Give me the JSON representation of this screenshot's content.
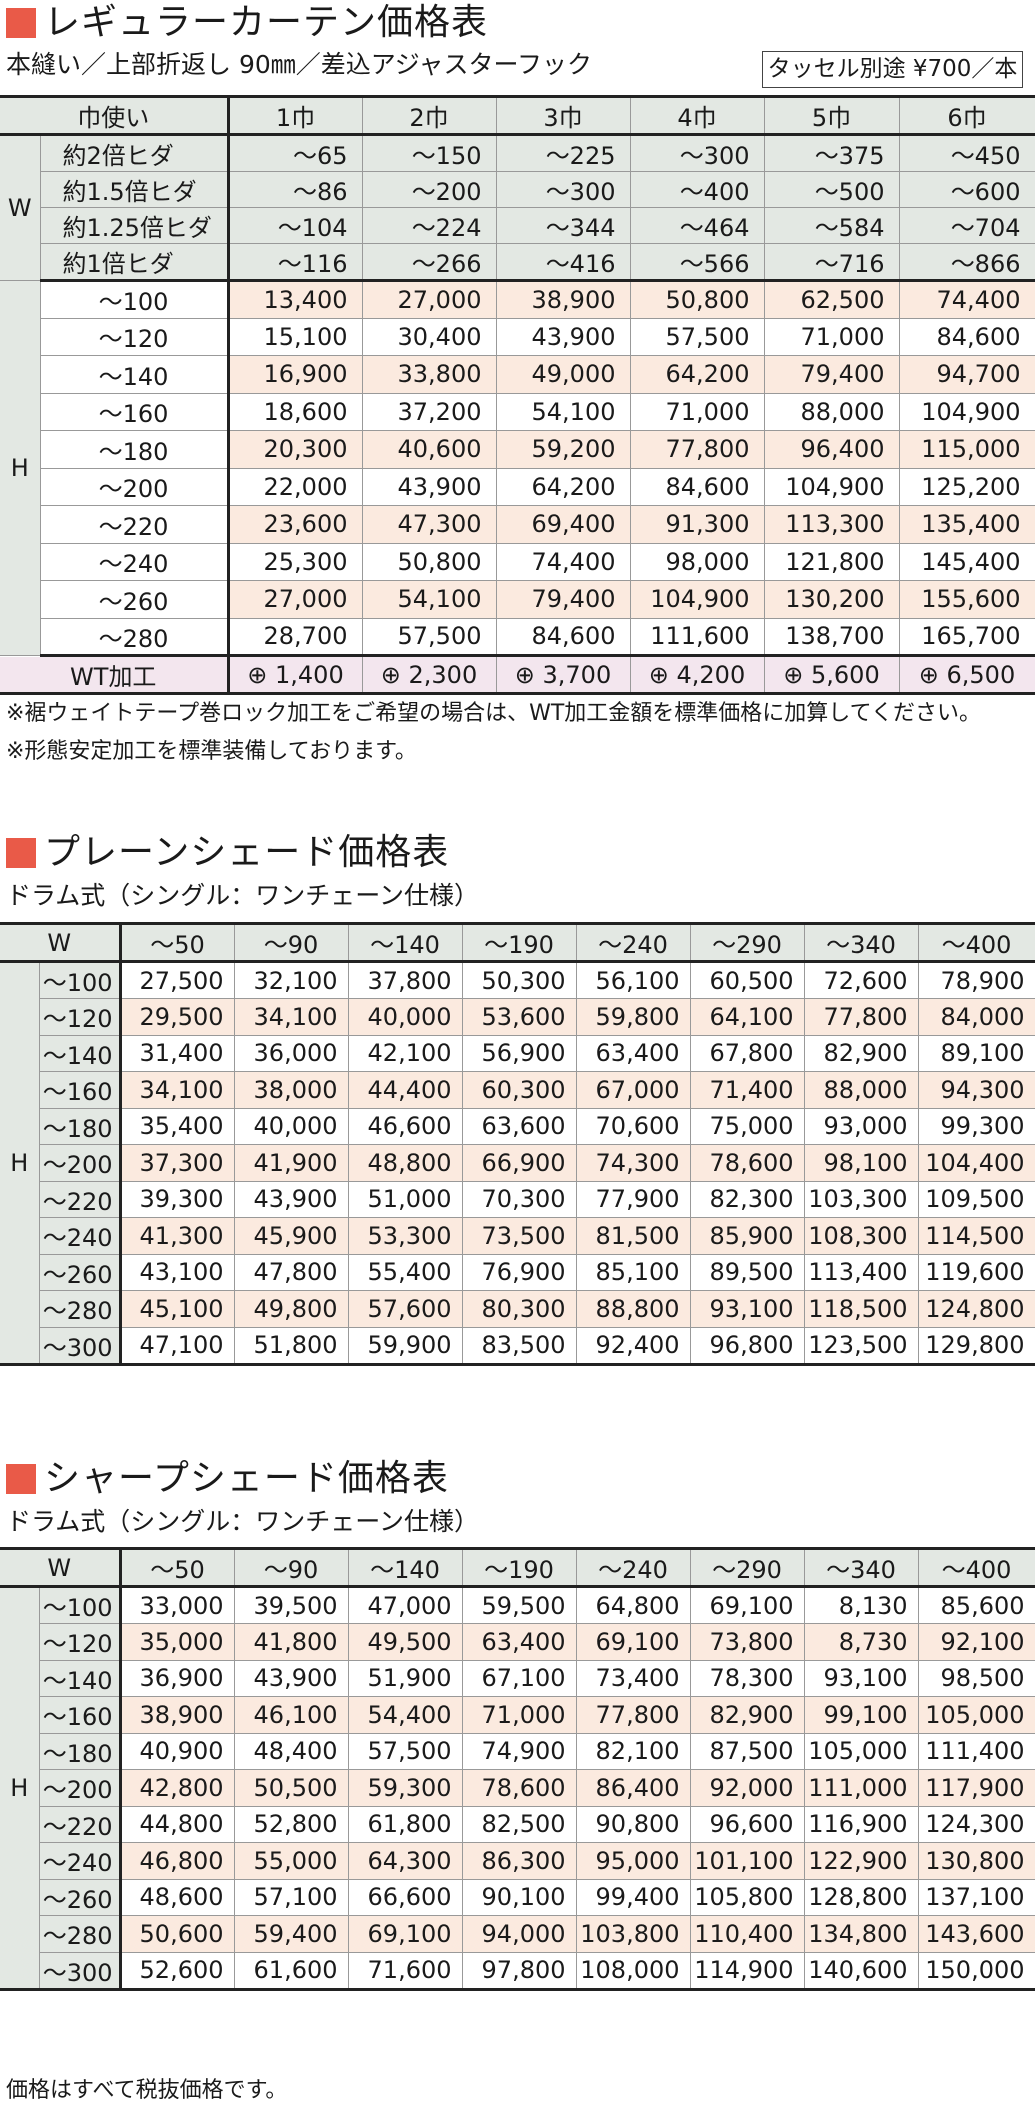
{
  "curtain": {
    "title": "レギュラーカーテン価格表",
    "subtitle": "本縫い／上部折返し 90㎜／差込アジャスターフック",
    "tassel": "タッセル別途 ¥700／本",
    "corner_label": "巾使い",
    "columns": [
      "1巾",
      "2巾",
      "3巾",
      "4巾",
      "5巾",
      "6巾"
    ],
    "w_group": "W",
    "h_group": "H",
    "w_rows": [
      {
        "label": "約2倍ヒダ",
        "values": [
          "～65",
          "～150",
          "～225",
          "～300",
          "～375",
          "～450"
        ]
      },
      {
        "label": "約1.5倍ヒダ",
        "values": [
          "～86",
          "～200",
          "～300",
          "～400",
          "～500",
          "～600"
        ]
      },
      {
        "label": "約1.25倍ヒダ",
        "values": [
          "～104",
          "～224",
          "～344",
          "～464",
          "～584",
          "～704"
        ]
      },
      {
        "label": "約1倍ヒダ",
        "values": [
          "～116",
          "～266",
          "～416",
          "～566",
          "～716",
          "～866"
        ]
      }
    ],
    "h_rows": [
      {
        "label": "～100",
        "values": [
          "13,400",
          "27,000",
          "38,900",
          "50,800",
          "62,500",
          "74,400"
        ]
      },
      {
        "label": "～120",
        "values": [
          "15,100",
          "30,400",
          "43,900",
          "57,500",
          "71,000",
          "84,600"
        ]
      },
      {
        "label": "～140",
        "values": [
          "16,900",
          "33,800",
          "49,000",
          "64,200",
          "79,400",
          "94,700"
        ]
      },
      {
        "label": "～160",
        "values": [
          "18,600",
          "37,200",
          "54,100",
          "71,000",
          "88,000",
          "104,900"
        ]
      },
      {
        "label": "～180",
        "values": [
          "20,300",
          "40,600",
          "59,200",
          "77,800",
          "96,400",
          "115,000"
        ]
      },
      {
        "label": "～200",
        "values": [
          "22,000",
          "43,900",
          "64,200",
          "84,600",
          "104,900",
          "125,200"
        ]
      },
      {
        "label": "～220",
        "values": [
          "23,600",
          "47,300",
          "69,400",
          "91,300",
          "113,300",
          "135,400"
        ]
      },
      {
        "label": "～240",
        "values": [
          "25,300",
          "50,800",
          "74,400",
          "98,000",
          "121,800",
          "145,400"
        ]
      },
      {
        "label": "～260",
        "values": [
          "27,000",
          "54,100",
          "79,400",
          "104,900",
          "130,200",
          "155,600"
        ]
      },
      {
        "label": "～280",
        "values": [
          "28,700",
          "57,500",
          "84,600",
          "111,600",
          "138,700",
          "165,700"
        ]
      }
    ],
    "wt_label": "WT加工",
    "wt_values": [
      "⊕ 1,400",
      "⊕ 2,300",
      "⊕ 3,700",
      "⊕ 4,200",
      "⊕ 5,600",
      "⊕ 6,500"
    ],
    "notes": [
      "※裾ウェイトテープ巻ロック加工をご希望の場合は、WT加工金額を標準価格に加算してください。",
      "※形態安定加工を標準装備しております。"
    ]
  },
  "plain": {
    "title": "プレーンシェード価格表",
    "subtitle": "ドラム式（シングル：ワンチェーン仕様）",
    "w_label": "W",
    "h_group": "H",
    "columns": [
      "～50",
      "～90",
      "～140",
      "～190",
      "～240",
      "～290",
      "～340",
      "～400"
    ],
    "rows": [
      {
        "label": "～100",
        "values": [
          "27,500",
          "32,100",
          "37,800",
          "50,300",
          "56,100",
          "60,500",
          "72,600",
          "78,900"
        ]
      },
      {
        "label": "～120",
        "values": [
          "29,500",
          "34,100",
          "40,000",
          "53,600",
          "59,800",
          "64,100",
          "77,800",
          "84,000"
        ]
      },
      {
        "label": "～140",
        "values": [
          "31,400",
          "36,000",
          "42,100",
          "56,900",
          "63,400",
          "67,800",
          "82,900",
          "89,100"
        ]
      },
      {
        "label": "～160",
        "values": [
          "34,100",
          "38,000",
          "44,400",
          "60,300",
          "67,000",
          "71,400",
          "88,000",
          "94,300"
        ]
      },
      {
        "label": "～180",
        "values": [
          "35,400",
          "40,000",
          "46,600",
          "63,600",
          "70,600",
          "75,000",
          "93,000",
          "99,300"
        ]
      },
      {
        "label": "～200",
        "values": [
          "37,300",
          "41,900",
          "48,800",
          "66,900",
          "74,300",
          "78,600",
          "98,100",
          "104,400"
        ]
      },
      {
        "label": "～220",
        "values": [
          "39,300",
          "43,900",
          "51,000",
          "70,300",
          "77,900",
          "82,300",
          "103,300",
          "109,500"
        ]
      },
      {
        "label": "～240",
        "values": [
          "41,300",
          "45,900",
          "53,300",
          "73,500",
          "81,500",
          "85,900",
          "108,300",
          "114,500"
        ]
      },
      {
        "label": "～260",
        "values": [
          "43,100",
          "47,800",
          "55,400",
          "76,900",
          "85,100",
          "89,500",
          "113,400",
          "119,600"
        ]
      },
      {
        "label": "～280",
        "values": [
          "45,100",
          "49,800",
          "57,600",
          "80,300",
          "88,800",
          "93,100",
          "118,500",
          "124,800"
        ]
      },
      {
        "label": "～300",
        "values": [
          "47,100",
          "51,800",
          "59,900",
          "83,500",
          "92,400",
          "96,800",
          "123,500",
          "129,800"
        ]
      }
    ]
  },
  "sharp": {
    "title": "シャープシェード価格表",
    "subtitle": "ドラム式（シングル：ワンチェーン仕様）",
    "w_label": "W",
    "h_group": "H",
    "columns": [
      "～50",
      "～90",
      "～140",
      "～190",
      "～240",
      "～290",
      "～340",
      "～400"
    ],
    "rows": [
      {
        "label": "～100",
        "values": [
          "33,000",
          "39,500",
          "47,000",
          "59,500",
          "64,800",
          "69,100",
          "8,130",
          "85,600"
        ]
      },
      {
        "label": "～120",
        "values": [
          "35,000",
          "41,800",
          "49,500",
          "63,400",
          "69,100",
          "73,800",
          "8,730",
          "92,100"
        ]
      },
      {
        "label": "～140",
        "values": [
          "36,900",
          "43,900",
          "51,900",
          "67,100",
          "73,400",
          "78,300",
          "93,100",
          "98,500"
        ]
      },
      {
        "label": "～160",
        "values": [
          "38,900",
          "46,100",
          "54,400",
          "71,000",
          "77,800",
          "82,900",
          "99,100",
          "105,000"
        ]
      },
      {
        "label": "～180",
        "values": [
          "40,900",
          "48,400",
          "57,500",
          "74,900",
          "82,100",
          "87,500",
          "105,000",
          "111,400"
        ]
      },
      {
        "label": "～200",
        "values": [
          "42,800",
          "50,500",
          "59,300",
          "78,600",
          "86,400",
          "92,000",
          "111,000",
          "117,900"
        ]
      },
      {
        "label": "～220",
        "values": [
          "44,800",
          "52,800",
          "61,800",
          "82,500",
          "90,800",
          "96,600",
          "116,900",
          "124,300"
        ]
      },
      {
        "label": "～240",
        "values": [
          "46,800",
          "55,000",
          "64,300",
          "86,300",
          "95,000",
          "101,100",
          "122,900",
          "130,800"
        ]
      },
      {
        "label": "～260",
        "values": [
          "48,600",
          "57,100",
          "66,600",
          "90,100",
          "99,400",
          "105,800",
          "128,800",
          "137,100"
        ]
      },
      {
        "label": "～280",
        "values": [
          "50,600",
          "59,400",
          "69,100",
          "94,000",
          "103,800",
          "110,400",
          "134,800",
          "143,600"
        ]
      },
      {
        "label": "～300",
        "values": [
          "52,600",
          "61,600",
          "71,600",
          "97,800",
          "108,000",
          "114,900",
          "140,600",
          "150,000"
        ]
      }
    ]
  },
  "footer_note": "価格はすべて税抜価格です。"
}
